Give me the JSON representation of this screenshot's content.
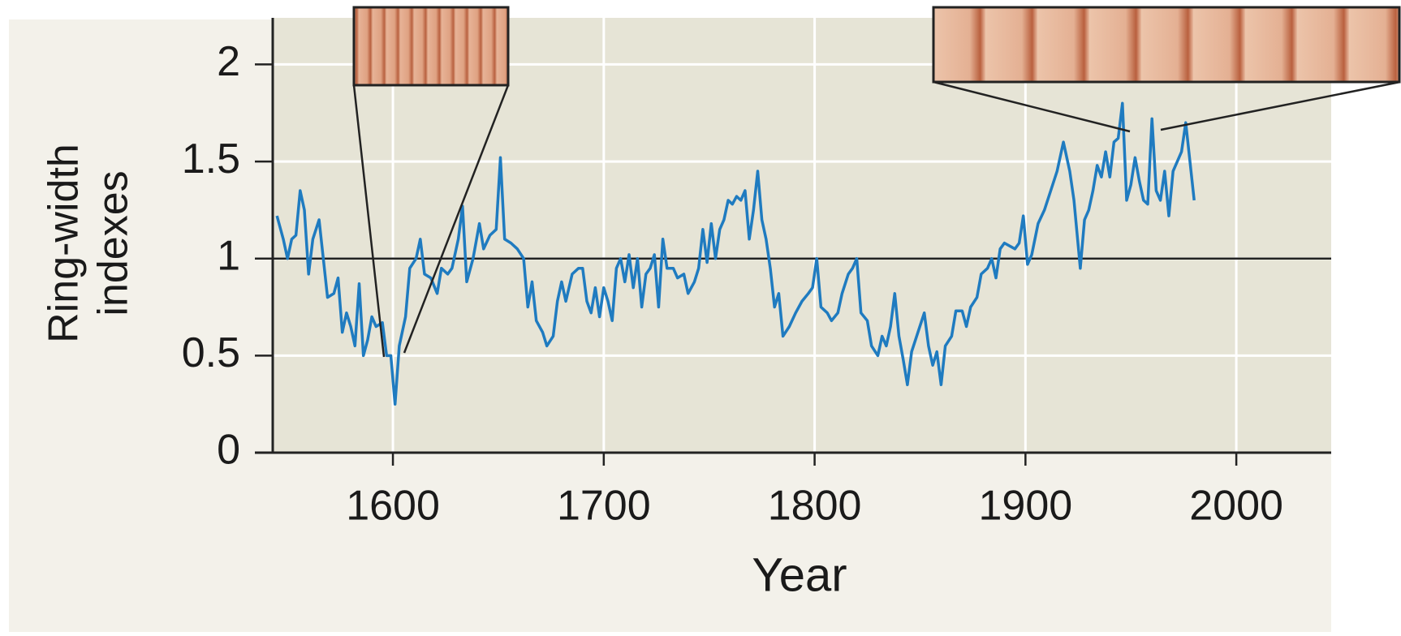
{
  "chart_data": {
    "type": "line",
    "xlabel": "Year",
    "ylabel": [
      "Ring-width",
      "indexes"
    ],
    "color": "#1f7bc0",
    "grid": true,
    "hline": 1,
    "xlim": [
      1543,
      2045
    ],
    "ylim": [
      0,
      2.24
    ],
    "xticks": [
      1600,
      1700,
      1800,
      1900,
      2000
    ],
    "yticks": [
      0,
      0.5,
      1,
      1.5,
      2
    ],
    "x": [
      1545,
      1548,
      1550,
      1552,
      1554,
      1556,
      1558,
      1560,
      1562,
      1565,
      1567,
      1569,
      1572,
      1574,
      1576,
      1578,
      1580,
      1582,
      1584,
      1586,
      1588,
      1590,
      1592,
      1595,
      1597,
      1599,
      1601,
      1603,
      1606,
      1608,
      1611,
      1613,
      1615,
      1618,
      1621,
      1623,
      1626,
      1628,
      1631,
      1633,
      1635,
      1638,
      1641,
      1643,
      1646,
      1649,
      1651,
      1653,
      1656,
      1659,
      1662,
      1664,
      1666,
      1668,
      1671,
      1673,
      1676,
      1678,
      1680,
      1682,
      1685,
      1688,
      1690,
      1692,
      1694,
      1696,
      1698,
      1700,
      1702,
      1704,
      1706,
      1708,
      1710,
      1712,
      1714,
      1716,
      1718,
      1720,
      1722,
      1724,
      1726,
      1728,
      1730,
      1733,
      1735,
      1738,
      1740,
      1743,
      1745,
      1747,
      1749,
      1751,
      1753,
      1755,
      1757,
      1759,
      1761,
      1763,
      1765,
      1767,
      1769,
      1771,
      1773,
      1775,
      1777,
      1779,
      1781,
      1783,
      1785,
      1788,
      1791,
      1794,
      1797,
      1799,
      1801,
      1803,
      1806,
      1808,
      1811,
      1813,
      1816,
      1818,
      1820,
      1822,
      1825,
      1827,
      1830,
      1832,
      1834,
      1836,
      1838,
      1840,
      1842,
      1844,
      1846,
      1849,
      1852,
      1854,
      1856,
      1858,
      1860,
      1862,
      1865,
      1867,
      1870,
      1872,
      1874,
      1877,
      1879,
      1882,
      1884,
      1886,
      1888,
      1890,
      1895,
      1897,
      1899,
      1901,
      1903,
      1906,
      1909,
      1912,
      1915,
      1918,
      1921,
      1923,
      1926,
      1928,
      1930,
      1932,
      1934,
      1936,
      1938,
      1940,
      1942,
      1944,
      1946,
      1948,
      1950,
      1952,
      1954,
      1956,
      1958,
      1960,
      1962,
      1964,
      1966,
      1968,
      1970,
      1972,
      1974,
      1976,
      1978,
      1980
    ],
    "values": [
      1.22,
      1.1,
      1.0,
      1.1,
      1.12,
      1.35,
      1.25,
      0.92,
      1.1,
      1.2,
      1.0,
      0.8,
      0.82,
      0.9,
      0.62,
      0.72,
      0.65,
      0.55,
      0.87,
      0.5,
      0.58,
      0.7,
      0.65,
      0.67,
      0.5,
      0.5,
      0.25,
      0.55,
      0.7,
      0.95,
      1.0,
      1.1,
      0.92,
      0.9,
      0.82,
      0.95,
      0.92,
      0.95,
      1.1,
      1.27,
      0.88,
      1.0,
      1.18,
      1.05,
      1.12,
      1.15,
      1.52,
      1.1,
      1.08,
      1.05,
      1.0,
      0.75,
      0.88,
      0.68,
      0.62,
      0.55,
      0.6,
      0.78,
      0.88,
      0.78,
      0.92,
      0.95,
      0.95,
      0.78,
      0.72,
      0.85,
      0.7,
      0.85,
      0.78,
      0.68,
      0.95,
      1.0,
      0.88,
      1.02,
      0.85,
      1.0,
      0.75,
      0.92,
      0.95,
      1.02,
      0.75,
      1.1,
      0.95,
      0.95,
      0.9,
      0.92,
      0.82,
      0.88,
      0.95,
      1.15,
      0.98,
      1.18,
      1.0,
      1.15,
      1.2,
      1.3,
      1.28,
      1.32,
      1.3,
      1.35,
      1.1,
      1.25,
      1.45,
      1.2,
      1.1,
      0.95,
      0.75,
      0.82,
      0.6,
      0.65,
      0.72,
      0.78,
      0.82,
      0.85,
      1.0,
      0.75,
      0.72,
      0.68,
      0.72,
      0.82,
      0.92,
      0.95,
      1.0,
      0.72,
      0.68,
      0.55,
      0.5,
      0.6,
      0.55,
      0.65,
      0.82,
      0.6,
      0.48,
      0.35,
      0.52,
      0.62,
      0.72,
      0.55,
      0.45,
      0.52,
      0.35,
      0.55,
      0.6,
      0.73,
      0.73,
      0.65,
      0.75,
      0.8,
      0.92,
      0.95,
      1.0,
      0.9,
      1.05,
      1.08,
      1.05,
      1.08,
      1.22,
      0.97,
      1.02,
      1.18,
      1.25,
      1.35,
      1.45,
      1.6,
      1.45,
      1.3,
      0.95,
      1.2,
      1.25,
      1.35,
      1.48,
      1.42,
      1.55,
      1.42,
      1.6,
      1.62,
      1.8,
      1.3,
      1.38,
      1.52,
      1.4,
      1.3,
      1.28,
      1.72,
      1.35,
      1.3,
      1.45,
      1.22,
      1.45,
      1.5,
      1.55,
      1.7,
      1.5,
      1.3
    ]
  }
}
